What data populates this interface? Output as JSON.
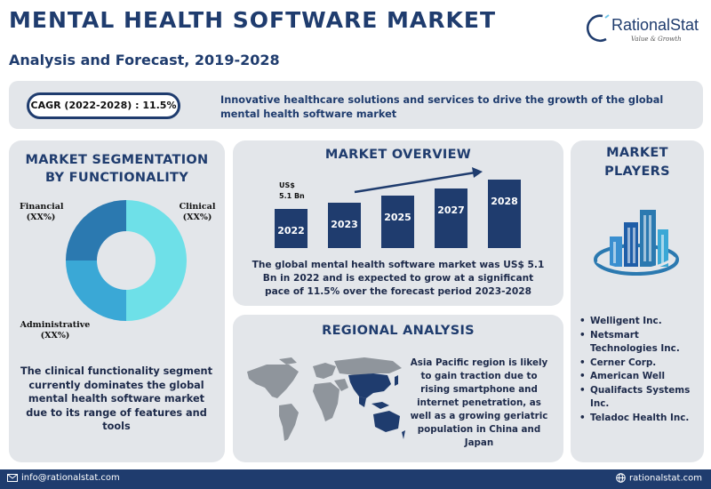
{
  "header": {
    "title": "MENTAL HEALTH SOFTWARE MARKET",
    "subtitle": "Analysis and Forecast, 2019-2028"
  },
  "logo": {
    "name": "RationalStat",
    "tagline": "Value & Growth"
  },
  "banner": {
    "cagr": "CAGR (2022-2028) : 11.5%",
    "text": "Innovative healthcare solutions and services to drive the growth of the global mental health software market"
  },
  "segmentation": {
    "title_line1": "MARKET SEGMENTATION",
    "title_line2": "BY FUNCTIONALITY",
    "segments": [
      {
        "name": "Financial",
        "value": "(XX%)",
        "share": 0.25,
        "color": "#2b79b0"
      },
      {
        "name": "Clinical",
        "value": "(XX%)",
        "share": 0.5,
        "color": "#6ee0e8"
      },
      {
        "name": "Administrative",
        "value": "(XX%)",
        "share": 0.25,
        "color": "#3aa8d6"
      }
    ],
    "description": "The clinical functionality segment currently dominates the global mental health software market due to its range of features and tools"
  },
  "overview": {
    "title": "MARKET OVERVIEW",
    "value_label_line1": "US$",
    "value_label_line2": "5.1 Bn",
    "description": "The global mental health software market was US$ 5.1 Bn in 2022 and is expected to grow at a significant pace of 11.5% over the forecast period 2023-2028"
  },
  "chart_data": {
    "type": "bar",
    "categories": [
      "2022",
      "2023",
      "2025",
      "2027",
      "2028"
    ],
    "values": [
      5.1,
      null,
      null,
      null,
      null
    ],
    "annotations": [
      "US$ 5.1 Bn"
    ],
    "color": "#1f3c6e"
  },
  "regional": {
    "title": "REGIONAL ANALYSIS",
    "description": "Asia Pacific region is likely to gain traction due to rising smartphone and internet penetration, as well as a growing geriatric population in China and Japan",
    "highlight_color": "#1f3c6e"
  },
  "players": {
    "title_line1": "MARKET",
    "title_line2": "PLAYERS",
    "items": [
      "Welligent Inc.",
      "Netsmart Technologies Inc.",
      "Cerner Corp.",
      "American Well",
      "Qualifacts Systems Inc.",
      "Teladoc Health Inc."
    ]
  },
  "footer": {
    "email": "info@rationalstat.com",
    "website": "rationalstat.com"
  },
  "colors": {
    "brand": "#1f3c6e",
    "panel": "#e3e6ea"
  }
}
